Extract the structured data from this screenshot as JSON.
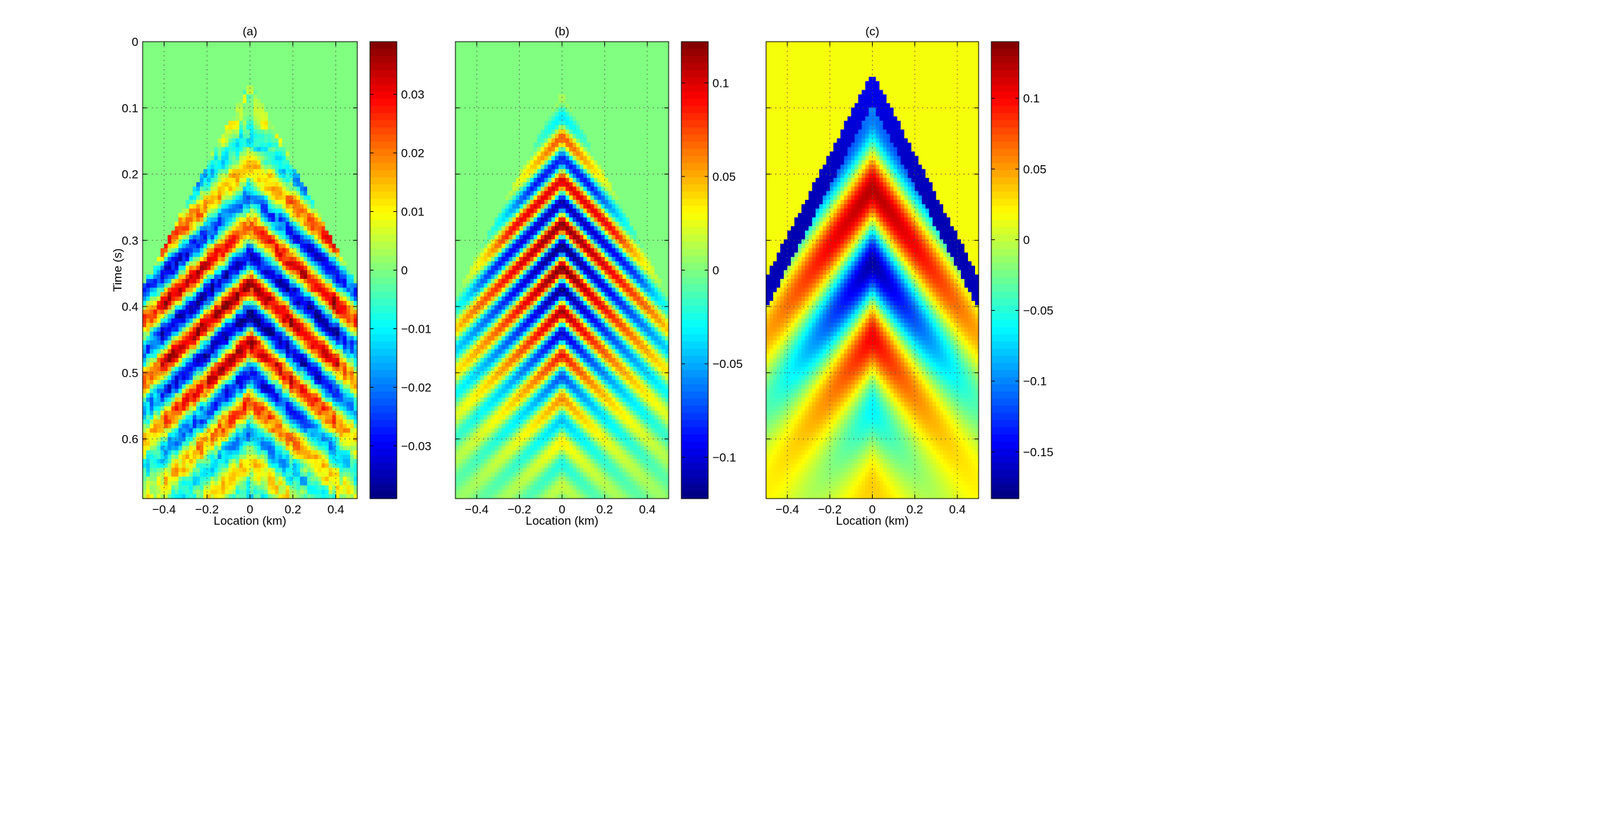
{
  "figure": {
    "ylabel": "Time (s)"
  },
  "chart_data": [
    {
      "type": "heatmap",
      "title": "(a)",
      "xlabel": "Location (km)",
      "ylabel": "Time (s)",
      "xlim": [
        -0.5,
        0.5
      ],
      "ylim": [
        0,
        0.69
      ],
      "x_ticks": [
        -0.4,
        -0.2,
        0,
        0.2,
        0.4
      ],
      "y_ticks": [
        0,
        0.1,
        0.2,
        0.3,
        0.4,
        0.5,
        0.6
      ],
      "grid": true,
      "colormap": "jet",
      "clim": [
        -0.039,
        0.039
      ],
      "colorbar_ticks": [
        -0.03,
        -0.02,
        -0.01,
        0,
        0.01,
        0.02,
        0.03
      ],
      "colorbar_tick_labels": [
        "−0.03",
        "−0.02",
        "−0.01",
        "0",
        "0.01",
        "0.02",
        "0.03"
      ],
      "x_tick_labels": [
        "−0.4",
        "−0.2",
        "0",
        "0.2",
        "0.4"
      ],
      "y_tick_labels": [
        "0",
        "0.1",
        "0.2",
        "0.3",
        "0.4",
        "0.5",
        "0.6"
      ],
      "show_ylabel": true,
      "show_yticklabels": true
    },
    {
      "type": "heatmap",
      "title": "(b)",
      "xlabel": "Location (km)",
      "xlim": [
        -0.5,
        0.5
      ],
      "ylim": [
        0,
        0.69
      ],
      "x_ticks": [
        -0.4,
        -0.2,
        0,
        0.2,
        0.4
      ],
      "y_ticks": [
        0,
        0.1,
        0.2,
        0.3,
        0.4,
        0.5,
        0.6
      ],
      "grid": true,
      "colormap": "jet",
      "clim": [
        -0.122,
        0.122
      ],
      "colorbar_ticks": [
        -0.1,
        -0.05,
        0,
        0.05,
        0.1
      ],
      "colorbar_tick_labels": [
        "−0.1",
        "−0.05",
        "0",
        "0.05",
        "0.1"
      ],
      "x_tick_labels": [
        "−0.4",
        "−0.2",
        "0",
        "0.2",
        "0.4"
      ],
      "show_ylabel": false,
      "show_yticklabels": false
    },
    {
      "type": "heatmap",
      "title": "(c)",
      "xlabel": "Location (km)",
      "xlim": [
        -0.5,
        0.5
      ],
      "ylim": [
        0,
        0.69
      ],
      "x_ticks": [
        -0.4,
        -0.2,
        0,
        0.2,
        0.4
      ],
      "y_ticks": [
        0,
        0.1,
        0.2,
        0.3,
        0.4,
        0.5,
        0.6
      ],
      "grid": true,
      "colormap": "jet",
      "clim": [
        -0.183,
        0.14
      ],
      "colorbar_ticks": [
        -0.15,
        -0.1,
        -0.05,
        0,
        0.05,
        0.1
      ],
      "colorbar_tick_labels": [
        "−0.15",
        "−0.1",
        "−0.05",
        "0",
        "0.05",
        "0.1"
      ],
      "x_tick_labels": [
        "−0.4",
        "−0.2",
        "0",
        "0.2",
        "0.4"
      ],
      "show_ylabel": false,
      "show_yticklabels": false
    }
  ]
}
